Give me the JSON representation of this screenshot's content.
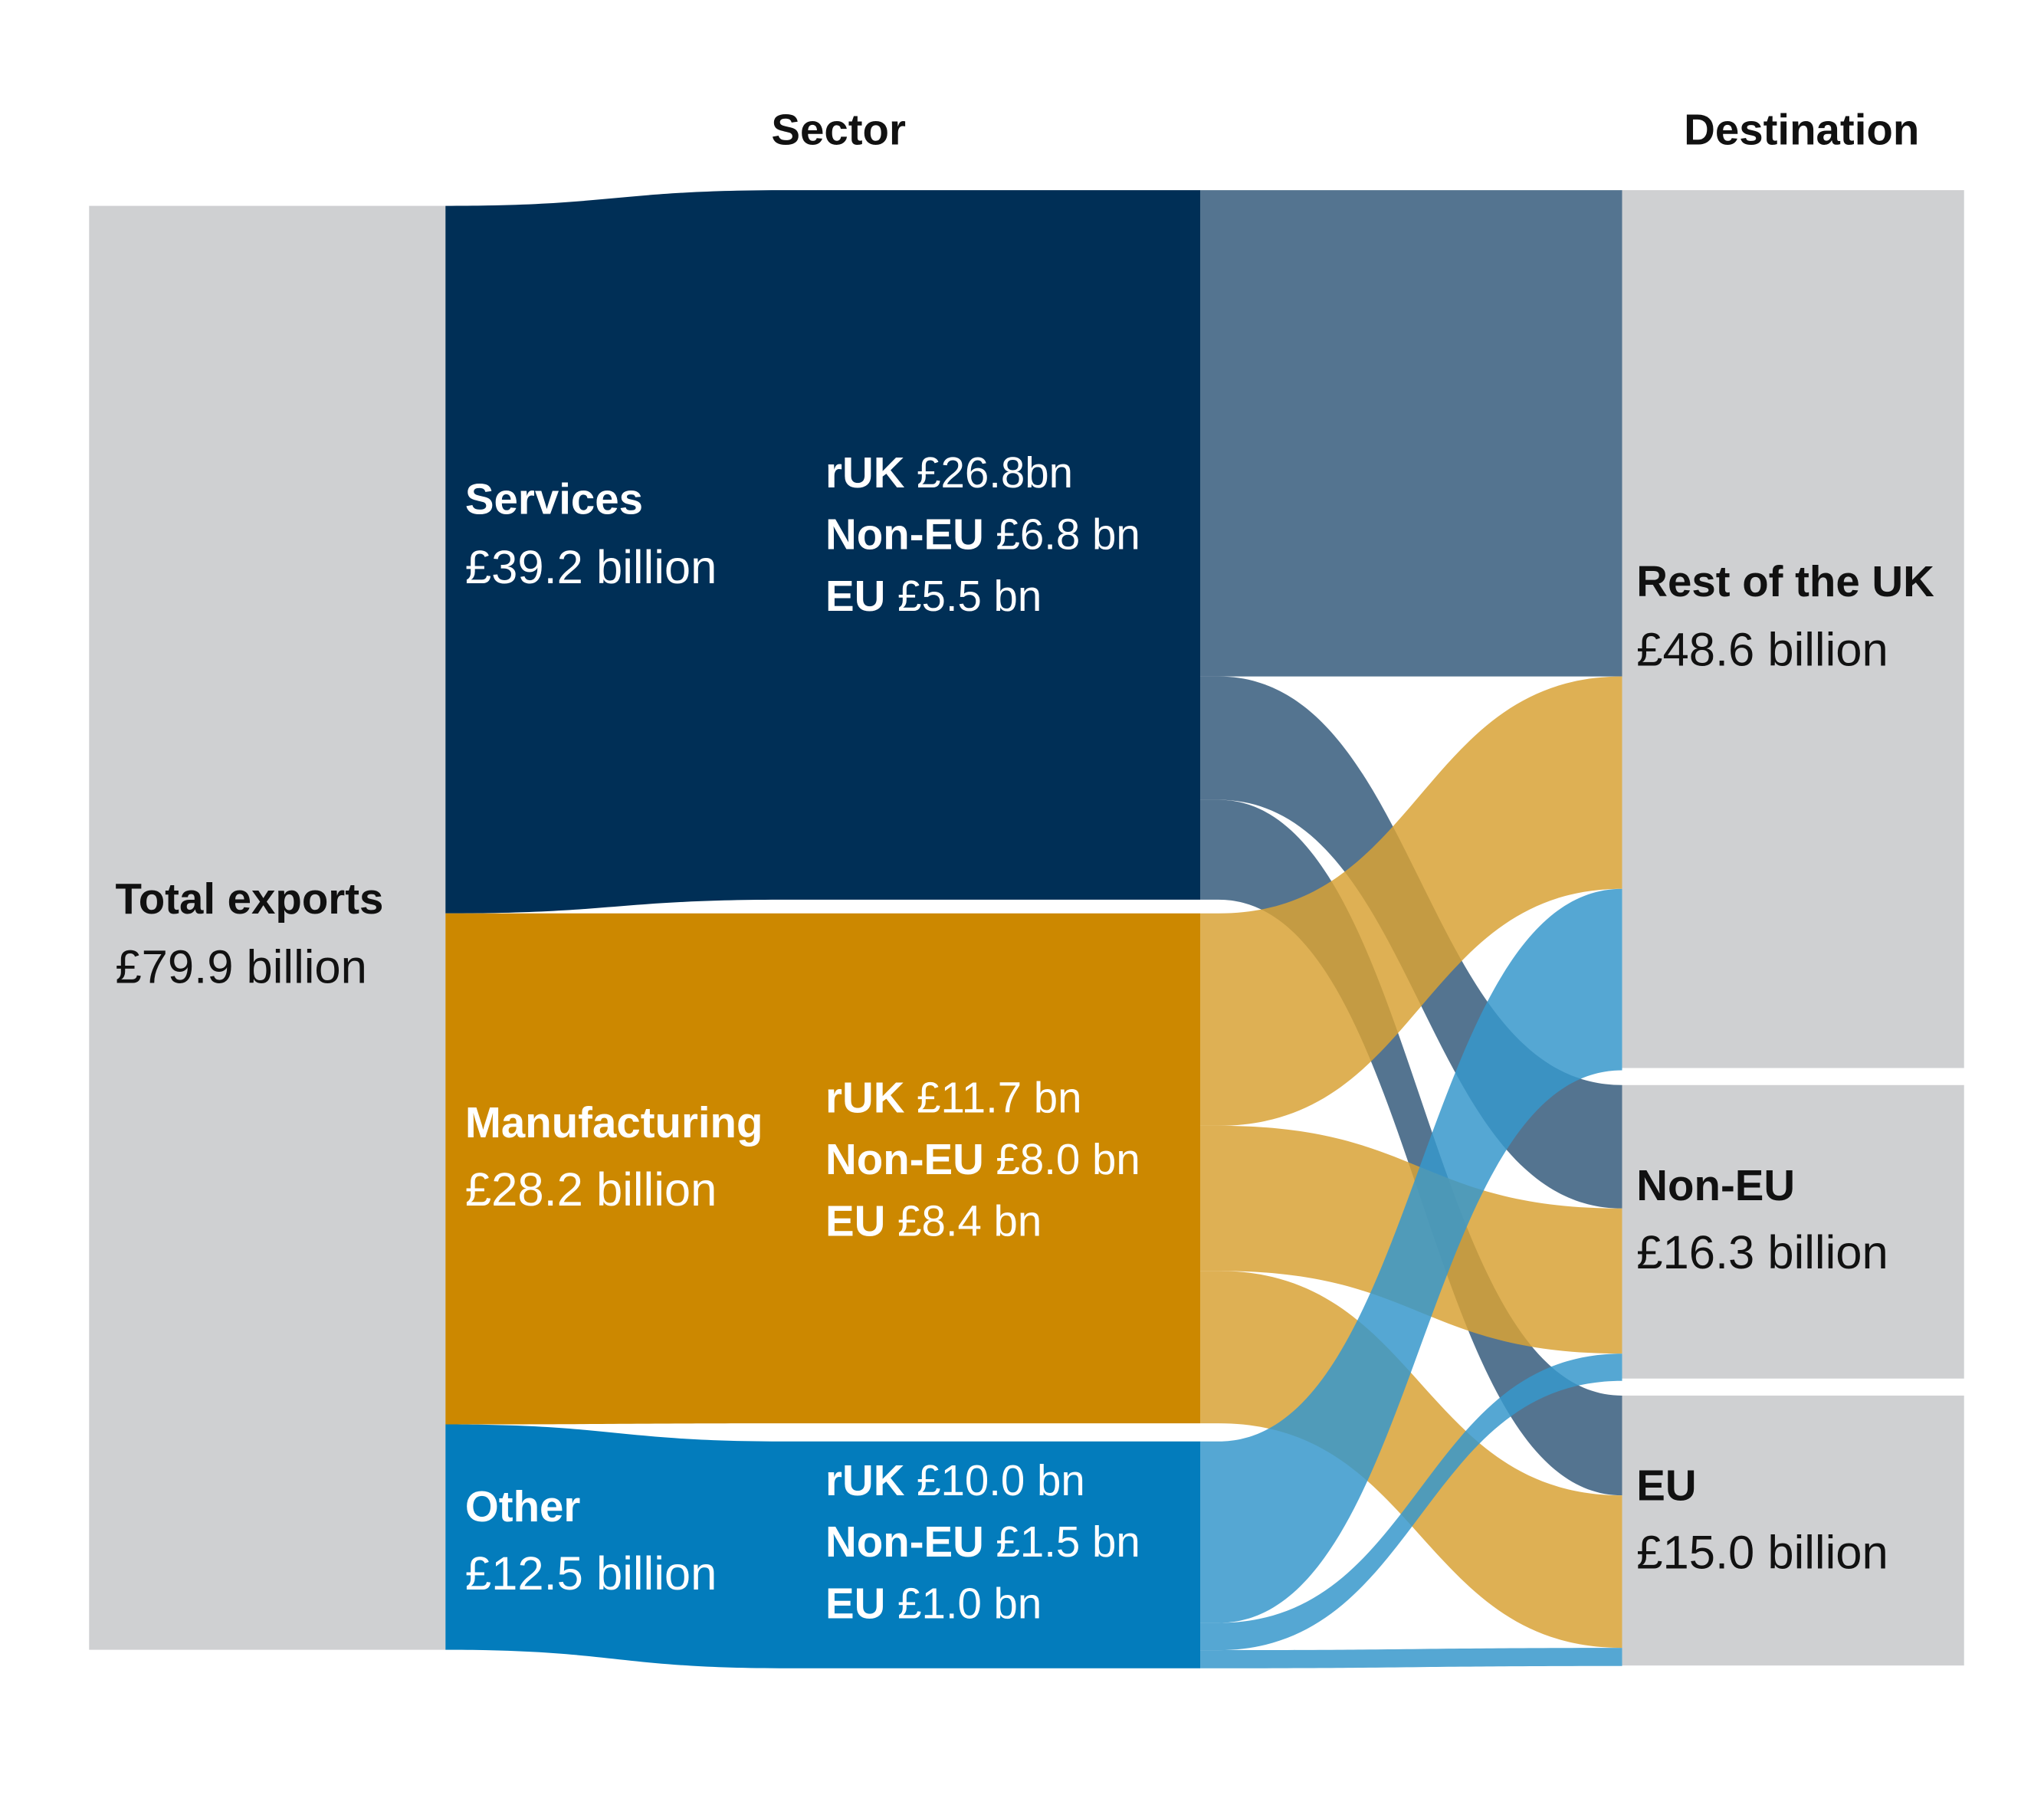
{
  "chart_data": {
    "type": "sankey",
    "column_titles": {
      "sector": "Sector",
      "destination": "Destination"
    },
    "unit": "£ billion",
    "total": {
      "name": "Total exports",
      "label": "£79.9 billion",
      "value": 79.9
    },
    "sectors": [
      {
        "id": "services",
        "name": "Services",
        "label": "£39.2 billion",
        "value": 39.2,
        "color": "#002f56",
        "flow_color": "#365c7c",
        "flows": [
          {
            "prefix": "rUK",
            "text": "£26.8bn",
            "to": "ruk",
            "value": 26.8
          },
          {
            "prefix": "Non-EU",
            "text": "£6.8 bn",
            "to": "noneu",
            "value": 6.8
          },
          {
            "prefix": "EU",
            "text": "£5.5 bn",
            "to": "eu",
            "value": 5.5
          }
        ]
      },
      {
        "id": "manufacturing",
        "name": "Manufacturing",
        "label": "£28.2 billion",
        "value": 28.2,
        "color": "#cc8800",
        "flow_color": "#d8a236",
        "flows": [
          {
            "prefix": "rUK",
            "text": "£11.7 bn",
            "to": "ruk",
            "value": 11.7
          },
          {
            "prefix": "Non-EU",
            "text": "£8.0 bn",
            "to": "noneu",
            "value": 8.0
          },
          {
            "prefix": "EU",
            "text": "£8.4 bn",
            "to": "eu",
            "value": 8.4
          }
        ]
      },
      {
        "id": "other",
        "name": "Other",
        "label": "£12.5 billion",
        "value": 12.5,
        "color": "#037cbc",
        "flow_color": "#3798cb",
        "flows": [
          {
            "prefix": "rUK",
            "text": "£10.0 bn",
            "to": "ruk",
            "value": 10.0
          },
          {
            "prefix": "Non-EU",
            "text": "£1.5 bn",
            "to": "noneu",
            "value": 1.5
          },
          {
            "prefix": "EU",
            "text": "£1.0 bn",
            "to": "eu",
            "value": 1.0
          }
        ]
      }
    ],
    "destinations": [
      {
        "id": "ruk",
        "name": "Rest of the UK",
        "label": "£48.6 billion",
        "value": 48.6
      },
      {
        "id": "noneu",
        "name": "Non-EU",
        "label": "£16.3 billion",
        "value": 16.3
      },
      {
        "id": "eu",
        "name": "EU",
        "label": "£15.0 billion",
        "value": 15.0
      }
    ],
    "node_color": "#cfd0d2"
  }
}
